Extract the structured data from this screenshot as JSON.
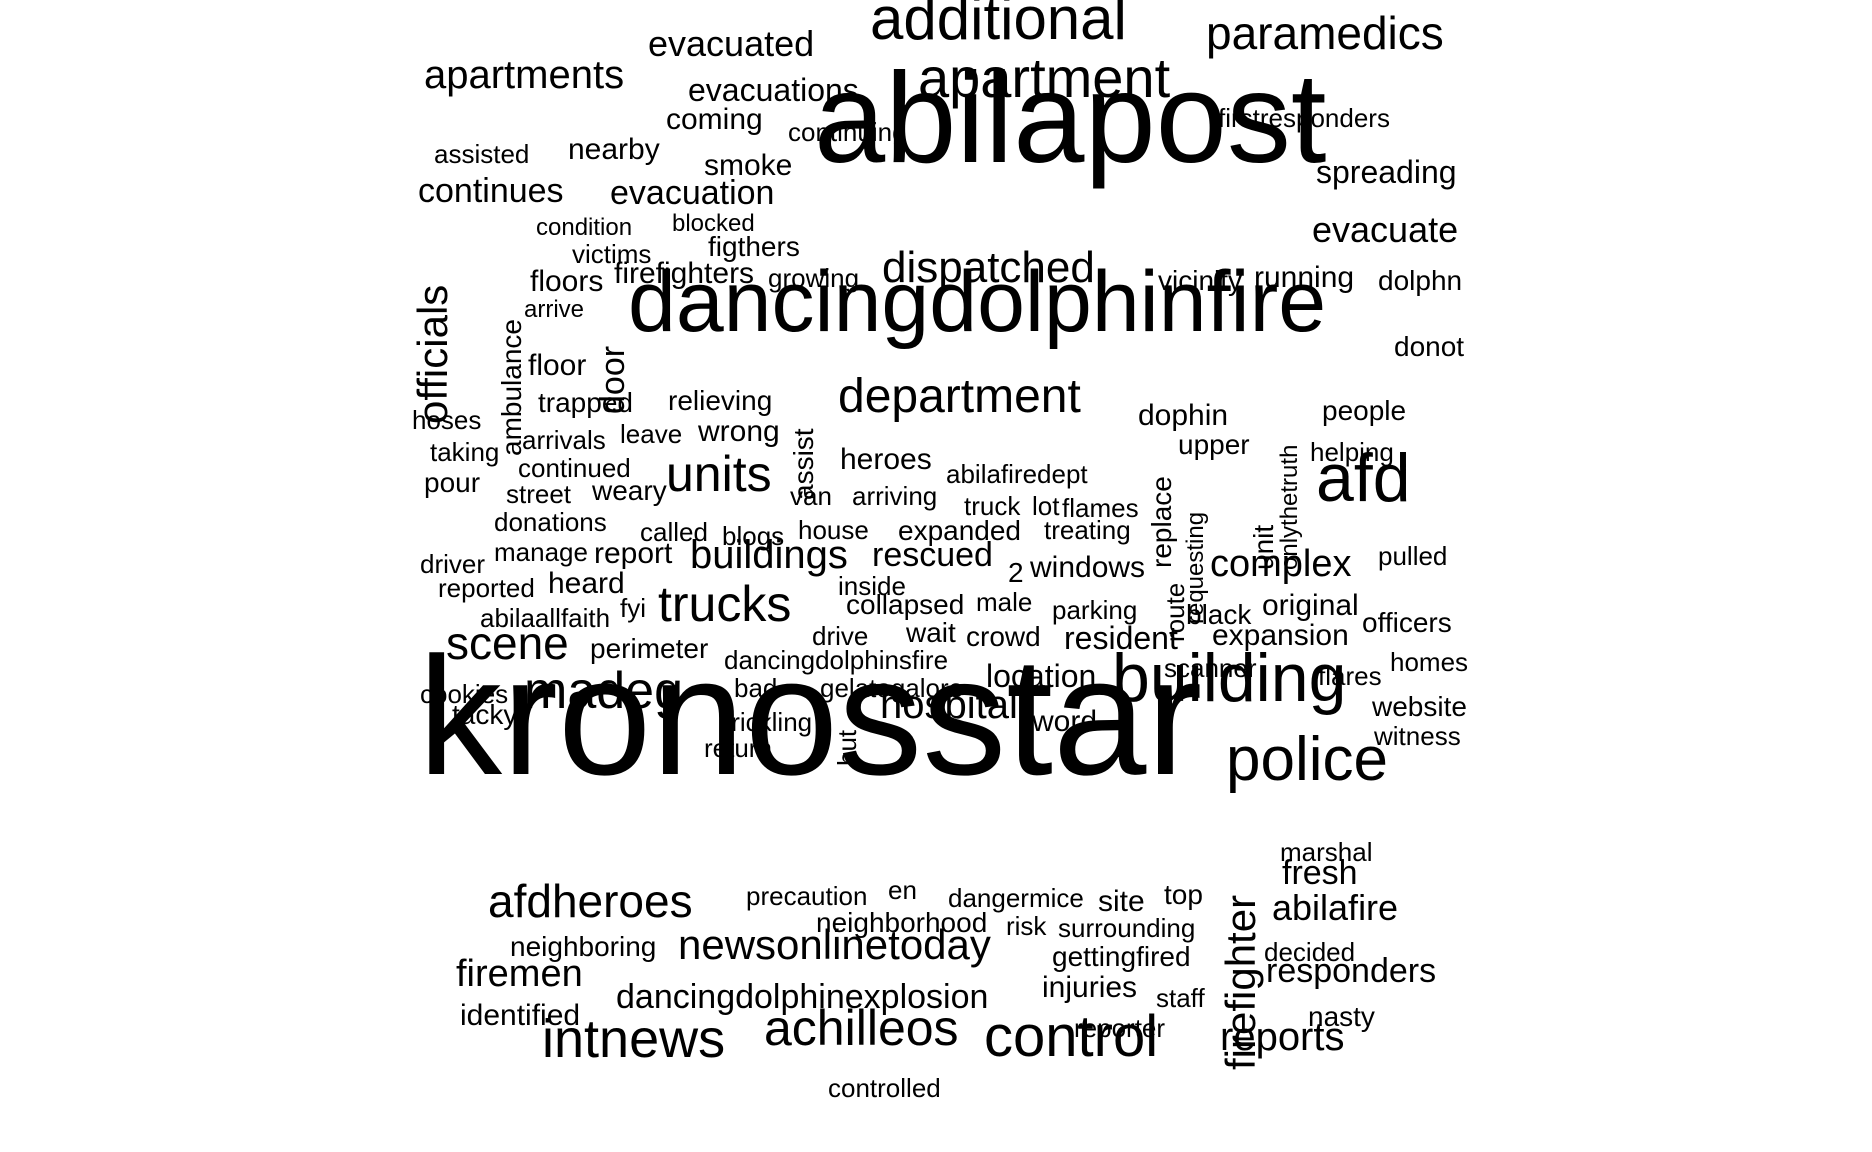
{
  "text_color": "#000000",
  "background": "#ffffff",
  "words": [
    "kronosstar",
    "abilapost",
    "dancingdolphinfire",
    "building",
    "police",
    "afd",
    "additional",
    "apartment",
    "paramedics",
    "department",
    "units",
    "trucks",
    "madeg",
    "afdheroes",
    "control",
    "intnews",
    "achilleos",
    "newsonlinetoday",
    "dispatched",
    "apartments",
    "evacuated",
    "evacuations",
    "coming",
    "continuing",
    "firstresponders",
    "assisted",
    "nearby",
    "smoke",
    "spreading",
    "continues",
    "evacuation",
    "evacuate",
    "condition",
    "blocked",
    "victims",
    "figthers",
    "officials",
    "floors",
    "firefighters",
    "growing",
    "vicinity",
    "running",
    "dolphn",
    "ambulance",
    "arrive",
    "door",
    "donot",
    "floor",
    "trapped",
    "relieving",
    "hoses",
    "taking",
    "arrivals",
    "leave",
    "wrong",
    "assist",
    "dophin",
    "people",
    "upper",
    "unit",
    "onlythetruth",
    "helping",
    "pour",
    "continued",
    "heroes",
    "abilafiredept",
    "replace",
    "requesting",
    "street",
    "weary",
    "van",
    "arriving",
    "truck",
    "lot",
    "flames",
    "donations",
    "called",
    "blogs",
    "house",
    "expanded",
    "treating",
    "manage",
    "driver",
    "report",
    "rescued",
    "2",
    "windows",
    "route",
    "complex",
    "pulled",
    "reported",
    "heard",
    "buildings",
    "inside",
    "abilaallfaith",
    "fyi",
    "collapsed",
    "male",
    "parking",
    "black",
    "original",
    "officers",
    "scene",
    "perimeter",
    "drive",
    "wait",
    "crowd",
    "resident",
    "expansion",
    "dancingdolphinsfire",
    "scanner",
    "homes",
    "cookies",
    "bad",
    "gelatogalore",
    "location",
    "flares",
    "tacky",
    "trickling",
    "hut",
    "hospital",
    "word",
    "website",
    "witness",
    "return",
    "firefighter",
    "marshal",
    "fresh",
    "precaution",
    "en",
    "dangermice",
    "site",
    "top",
    "abilafire",
    "neighborhood",
    "risk",
    "surrounding",
    "neighboring",
    "gettingfired",
    "decided",
    "firemen",
    "injuries",
    "responders",
    "staff",
    "identified",
    "dancingdolphinexplosion",
    "reporter",
    "nasty",
    "reports",
    "controlled"
  ]
}
